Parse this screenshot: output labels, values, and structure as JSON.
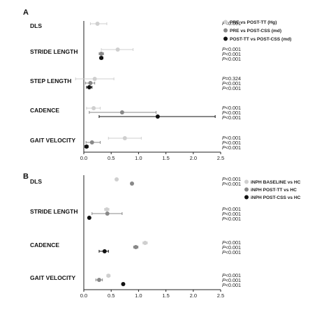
{
  "figure": {
    "panels": [
      {
        "panel_label": "A",
        "chart_data": {
          "type": "scatter",
          "style": "forest-plot",
          "xlim": [
            0,
            2.5
          ],
          "xticks": [
            "0.0",
            "0.5",
            "1.0",
            "1.5",
            "2.0",
            "2.5"
          ],
          "categories": [
            "DLS",
            "STRIDE LENGTH",
            "STEP LENGTH",
            "CADENCE",
            "GAIT VELOCITY"
          ],
          "series": [
            {
              "name": "PRE vs POST-TT (Hg)",
              "color": "#cfcfcf",
              "points": [
                {
                  "category": "DLS",
                  "x": 0.25,
                  "lo": 0.12,
                  "hi": 0.42,
                  "p": "P<0.001"
                },
                {
                  "category": "STRIDE LENGTH",
                  "x": 0.62,
                  "lo": 0.32,
                  "hi": 0.9,
                  "p": "P<0.001"
                },
                {
                  "category": "STEP LENGTH",
                  "x": 0.2,
                  "lo": -0.15,
                  "hi": 0.55,
                  "p": "P=0.324"
                },
                {
                  "category": "CADENCE",
                  "x": 0.18,
                  "lo": 0.05,
                  "hi": 0.3,
                  "p": "P<0.001"
                },
                {
                  "category": "GAIT VELOCITY",
                  "x": 0.75,
                  "lo": 0.45,
                  "hi": 1.05,
                  "p": "P<0.001"
                }
              ]
            },
            {
              "name": "PRE vs POST-CSS (md)",
              "color": "#888888",
              "points": [
                {
                  "category": "STRIDE LENGTH",
                  "x": 0.32,
                  "lo": 0.28,
                  "hi": 0.36,
                  "p": "P<0.001"
                },
                {
                  "category": "STEP LENGTH",
                  "x": 0.12,
                  "lo": 0.03,
                  "hi": 0.2,
                  "p": "P<0.001"
                },
                {
                  "category": "CADENCE",
                  "x": 0.7,
                  "lo": 0.1,
                  "hi": 1.32,
                  "p": "P<0.001"
                },
                {
                  "category": "GAIT VELOCITY",
                  "x": 0.15,
                  "lo": 0.04,
                  "hi": 0.3,
                  "p": "P<0.001"
                }
              ]
            },
            {
              "name": "POST-TT vs POST-CSS (md)",
              "color": "#111111",
              "points": [
                {
                  "category": "STRIDE LENGTH",
                  "x": 0.32,
                  "lo": 0.29,
                  "hi": 0.35,
                  "p": "P<0.001"
                },
                {
                  "category": "STEP LENGTH",
                  "x": 0.1,
                  "lo": 0.05,
                  "hi": 0.15,
                  "p": "P<0.001"
                },
                {
                  "category": "CADENCE",
                  "x": 1.35,
                  "lo": 0.28,
                  "hi": 2.4,
                  "p": "P<0.001"
                },
                {
                  "category": "GAIT VELOCITY",
                  "x": 0.05,
                  "lo": 0.02,
                  "hi": 0.08,
                  "p": "P<0.001"
                }
              ]
            }
          ]
        }
      },
      {
        "panel_label": "B",
        "chart_data": {
          "type": "scatter",
          "style": "forest-plot",
          "xlim": [
            0,
            2.5
          ],
          "xticks": [
            "0.0",
            "0.5",
            "1.0",
            "1.5",
            "2.0",
            "2.5"
          ],
          "categories": [
            "DLS",
            "STRIDE LENGTH",
            "CADENCE",
            "GAIT VELOCITY"
          ],
          "series": [
            {
              "name": "iNPH BASELINE vs HC",
              "color": "#cfcfcf",
              "points": [
                {
                  "category": "DLS",
                  "x": 0.6,
                  "lo": 0.58,
                  "hi": 0.62,
                  "p": "P<0.001"
                },
                {
                  "category": "STRIDE LENGTH",
                  "x": 0.42,
                  "lo": 0.38,
                  "hi": 0.46,
                  "p": "P<0.001"
                },
                {
                  "category": "CADENCE",
                  "x": 1.12,
                  "lo": 1.08,
                  "hi": 1.16,
                  "p": "P<0.001"
                },
                {
                  "category": "GAIT VELOCITY",
                  "x": 0.45,
                  "lo": 0.42,
                  "hi": 0.48,
                  "p": "P<0.001"
                }
              ]
            },
            {
              "name": "iNPH POST-TT vs HC",
              "color": "#888888",
              "points": [
                {
                  "category": "DLS",
                  "x": 0.88,
                  "lo": 0.86,
                  "hi": 0.9,
                  "p": "P<0.001"
                },
                {
                  "category": "STRIDE LENGTH",
                  "x": 0.43,
                  "lo": 0.15,
                  "hi": 0.7,
                  "p": "P<0.001"
                },
                {
                  "category": "CADENCE",
                  "x": 0.95,
                  "lo": 0.91,
                  "hi": 0.99,
                  "p": "P<0.001"
                },
                {
                  "category": "GAIT VELOCITY",
                  "x": 0.28,
                  "lo": 0.22,
                  "hi": 0.34,
                  "p": "P<0.001"
                }
              ]
            },
            {
              "name": "iNPH POST-CSS vs HC",
              "color": "#111111",
              "points": [
                {
                  "category": "STRIDE LENGTH",
                  "x": 0.1,
                  "lo": 0.08,
                  "hi": 0.12,
                  "p": "P<0.001"
                },
                {
                  "category": "CADENCE",
                  "x": 0.38,
                  "lo": 0.28,
                  "hi": 0.45,
                  "p": "P<0.001"
                },
                {
                  "category": "GAIT VELOCITY",
                  "x": 0.72,
                  "lo": 0.7,
                  "hi": 0.74,
                  "p": "P<0.001"
                }
              ]
            }
          ]
        }
      }
    ]
  }
}
